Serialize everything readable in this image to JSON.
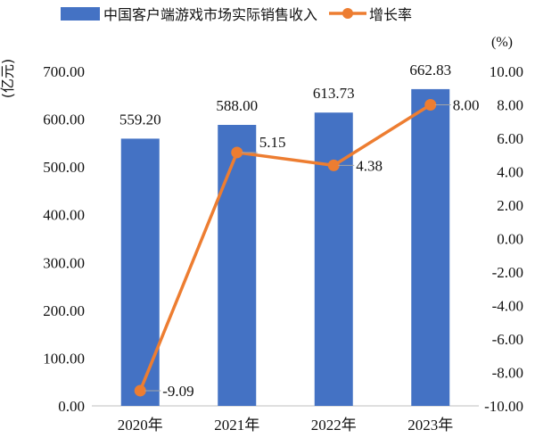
{
  "chart_data": {
    "type": "bar+line",
    "categories": [
      "2020年",
      "2021年",
      "2022年",
      "2023年"
    ],
    "series": [
      {
        "name": "中国客户端游戏市场实际销售收入",
        "type": "bar",
        "axis": "left",
        "values": [
          559.2,
          588.0,
          613.73,
          662.83
        ],
        "labels": [
          "559.20",
          "588.00",
          "613.73",
          "662.83"
        ],
        "color": "#4472c4"
      },
      {
        "name": "增长率",
        "type": "line",
        "axis": "right",
        "values": [
          -9.09,
          5.15,
          4.38,
          8.0
        ],
        "labels": [
          "-9.09",
          "5.15",
          "4.38",
          "8.00"
        ],
        "color": "#ed7d31"
      }
    ],
    "y_left": {
      "unit": "(亿元)",
      "ylim": [
        0,
        700
      ],
      "ticks": [
        "0.00",
        "100.00",
        "200.00",
        "300.00",
        "400.00",
        "500.00",
        "600.00",
        "700.00"
      ],
      "tick_values": [
        0,
        100,
        200,
        300,
        400,
        500,
        600,
        700
      ]
    },
    "y_right": {
      "unit": "(%)",
      "ylim": [
        -10,
        10
      ],
      "ticks": [
        "-10.00",
        "-8.00",
        "-6.00",
        "-4.00",
        "-2.00",
        "0.00",
        "2.00",
        "4.00",
        "6.00",
        "8.00",
        "10.00"
      ],
      "tick_values": [
        -10,
        -8,
        -6,
        -4,
        -2,
        0,
        2,
        4,
        6,
        8,
        10
      ]
    },
    "legend_position": "top",
    "grid": false
  }
}
